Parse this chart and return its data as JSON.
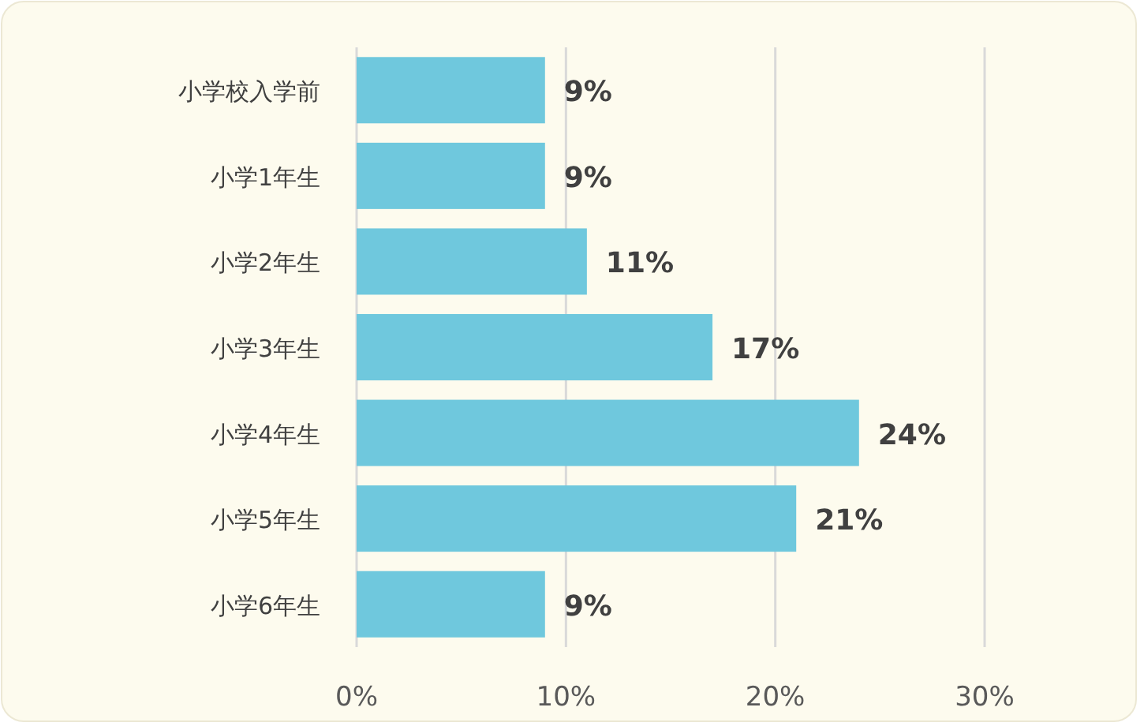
{
  "chart_data": {
    "type": "bar",
    "orientation": "horizontal",
    "categories": [
      "小学校入学前",
      "小学1年生",
      "小学2年生",
      "小学3年生",
      "小学4年生",
      "小学5年生",
      "小学6年生"
    ],
    "values": [
      9,
      9,
      11,
      17,
      24,
      21,
      9
    ],
    "color": "#6fc8dd",
    "xlim": [
      0,
      30
    ],
    "xticks": [
      {
        "value": 0,
        "label": "0%"
      },
      {
        "value": 10,
        "label": "10%"
      },
      {
        "value": 20,
        "label": "20%"
      },
      {
        "value": 30,
        "label": "30%"
      }
    ],
    "value_labels": [
      "9%",
      "9%",
      "11%",
      "17%",
      "24%",
      "21%",
      "9%"
    ],
    "grid": "x"
  }
}
